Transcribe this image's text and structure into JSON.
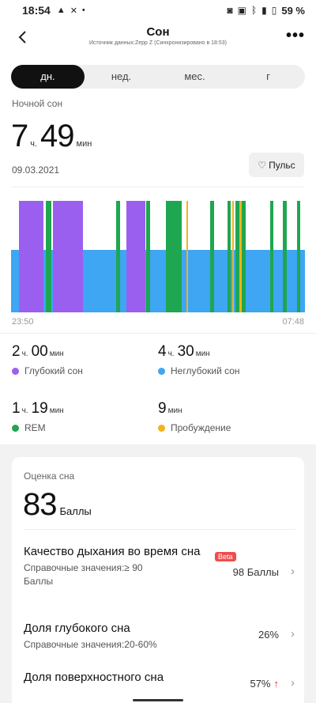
{
  "status_bar": {
    "time": "18:54",
    "battery": "59 %"
  },
  "header": {
    "title": "Сон",
    "subtitle": "Источник данных:Zepp Z (Синхронизировано в 18:53)"
  },
  "tabs": [
    {
      "label": "дн.",
      "active": true
    },
    {
      "label": "нед.",
      "active": false
    },
    {
      "label": "мес.",
      "active": false
    },
    {
      "label": "г",
      "active": false
    }
  ],
  "summary": {
    "label": "Ночной сон",
    "hours": "7",
    "hours_unit": "ч.",
    "minutes": "49",
    "minutes_unit": "мин",
    "date": "09.03.2021",
    "pulse_button": "Пульс"
  },
  "chart_data": {
    "type": "timeline",
    "start_time": "23:50",
    "end_time": "07:48",
    "colors": {
      "deep": "#9b5ff0",
      "light": "#3ea6f2",
      "rem": "#1fa651",
      "awake": "#f2b31c"
    },
    "segments": [
      {
        "stage": "deep",
        "start": 0.027,
        "end": 0.109
      },
      {
        "stage": "rem",
        "start": 0.117,
        "end": 0.135
      },
      {
        "stage": "deep",
        "start": 0.143,
        "end": 0.244
      },
      {
        "stage": "rem",
        "start": 0.357,
        "end": 0.371
      },
      {
        "stage": "deep",
        "start": 0.392,
        "end": 0.457
      },
      {
        "stage": "rem",
        "start": 0.46,
        "end": 0.474
      },
      {
        "stage": "rem",
        "start": 0.526,
        "end": 0.581
      },
      {
        "stage": "awake",
        "start": 0.597,
        "end": 0.601
      },
      {
        "stage": "rem",
        "start": 0.677,
        "end": 0.691
      },
      {
        "stage": "rem",
        "start": 0.737,
        "end": 0.747
      },
      {
        "stage": "awake",
        "start": 0.753,
        "end": 0.757
      },
      {
        "stage": "rem",
        "start": 0.763,
        "end": 0.777
      },
      {
        "stage": "awake",
        "start": 0.777,
        "end": 0.785
      },
      {
        "stage": "rem",
        "start": 0.785,
        "end": 0.798
      },
      {
        "stage": "rem",
        "start": 0.882,
        "end": 0.892
      },
      {
        "stage": "rem",
        "start": 0.925,
        "end": 0.938
      },
      {
        "stage": "rem",
        "start": 0.972,
        "end": 0.984
      }
    ]
  },
  "stats": [
    {
      "h": "2",
      "hu": "ч.",
      "m": "00",
      "mu": "мин",
      "label": "Глубокий сон",
      "color": "#9b5ff0"
    },
    {
      "h": "4",
      "hu": "ч.",
      "m": "30",
      "mu": "мин",
      "label": "Неглубокий сон",
      "color": "#3ea6f2"
    },
    {
      "h": "1",
      "hu": "ч.",
      "m": "19",
      "mu": "мин",
      "label": "REM",
      "color": "#1fa651"
    },
    {
      "h": "",
      "hu": "",
      "m": "9",
      "mu": "мин",
      "label": "Пробуждение",
      "color": "#f2b31c"
    }
  ],
  "score_card": {
    "label": "Оценка сна",
    "value": "83",
    "unit": "Баллы",
    "rows": [
      {
        "title": "Качество дыхания во время сна",
        "badge": "Beta",
        "ref": "Справочные значения:≥ 90 Баллы",
        "value": "98 Баллы"
      },
      {
        "title": "Доля глубокого сна",
        "ref": "Справочные значения:20-60%",
        "value": "26%"
      },
      {
        "title": "Доля поверхностного сна",
        "value": "57%",
        "arrow": "↑"
      }
    ]
  }
}
